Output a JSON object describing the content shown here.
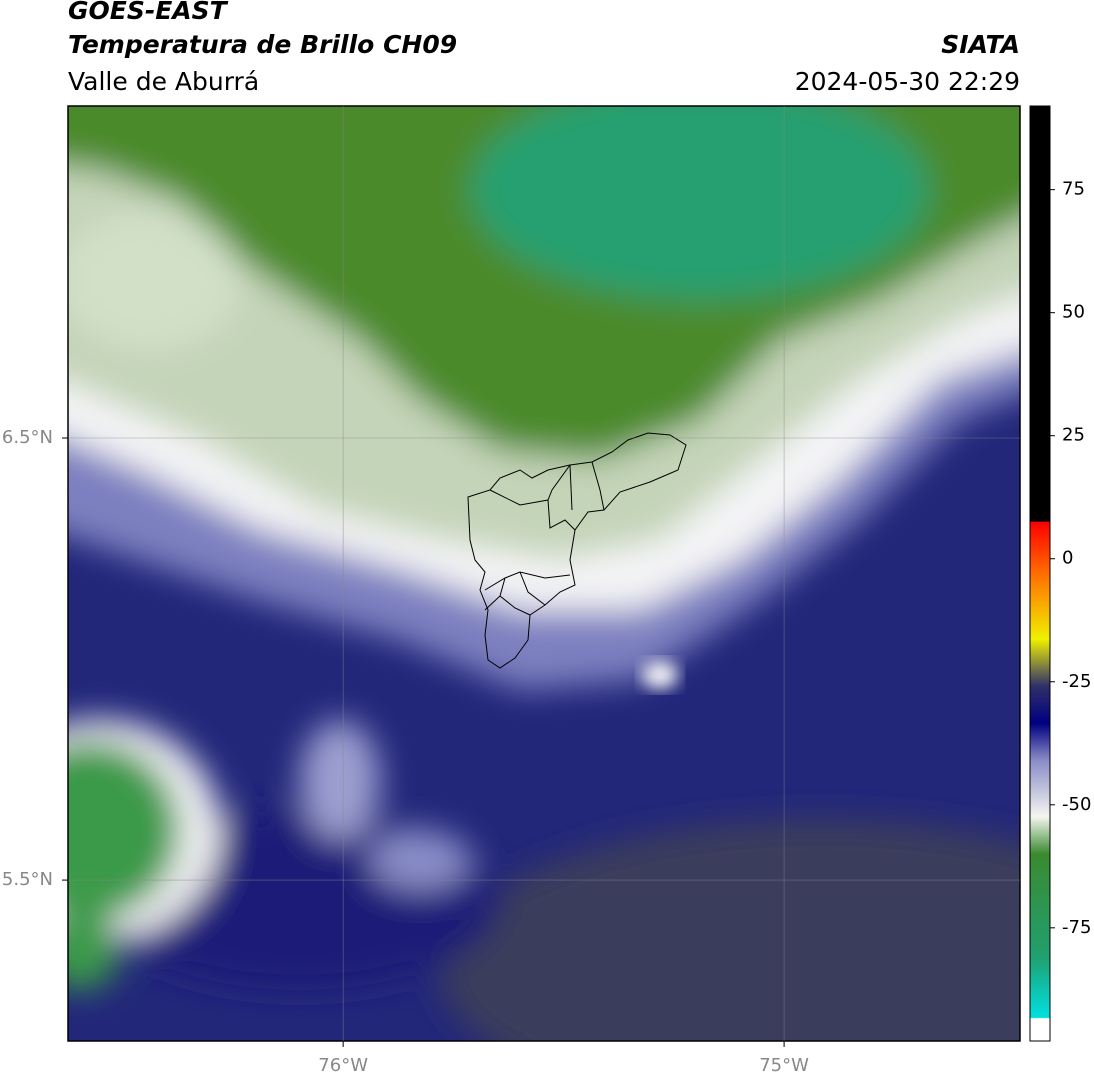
{
  "header": {
    "title": "GOES-EAST",
    "subtitle": "Temperatura de Brillo CH09",
    "region": "Valle de Aburrá",
    "source": "SIATA",
    "timestamp": "2024-05-30 22:29"
  },
  "map": {
    "xlim": [
      -76.624,
      -74.465
    ],
    "ylim": [
      5.136,
      7.251
    ],
    "xticks": [
      {
        "value": -76,
        "label": "76°W"
      },
      {
        "value": -75,
        "label": "75°W"
      }
    ],
    "yticks": [
      {
        "value": 6.5,
        "label": "6.5°N"
      },
      {
        "value": 5.5,
        "label": "5.5°N"
      }
    ],
    "grid": true
  },
  "colorbar": {
    "lim": [
      -98,
      92
    ],
    "ticks": [
      75,
      50,
      25,
      0,
      -25,
      -50,
      -75
    ]
  }
}
